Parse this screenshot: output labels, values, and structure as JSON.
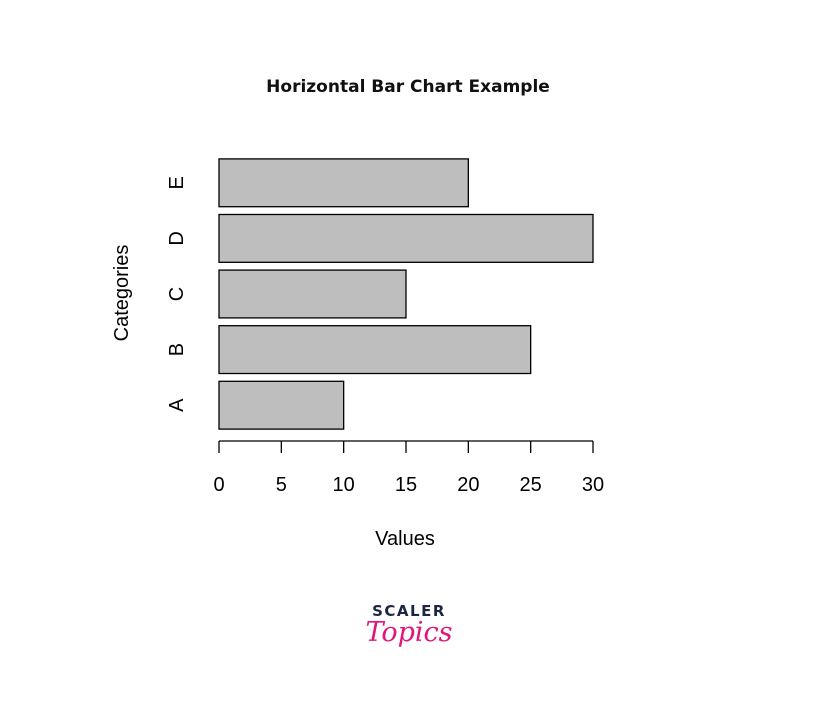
{
  "chart_data": {
    "type": "bar",
    "orientation": "horizontal",
    "title": "Horizontal Bar Chart Example",
    "xlabel": "Values",
    "ylabel": "Categories",
    "categories": [
      "A",
      "B",
      "C",
      "D",
      "E"
    ],
    "values": [
      10,
      25,
      15,
      30,
      20
    ],
    "xlim": [
      0,
      30
    ],
    "x_ticks": [
      "0",
      "5",
      "10",
      "15",
      "20",
      "25",
      "30"
    ],
    "bar_color": "#bebebe",
    "bar_edge_color": "#000000",
    "grid": false
  },
  "branding": {
    "logo_line1": "SCALER",
    "logo_line2": "Topics",
    "logo_color_dark": "#1c2541",
    "logo_color_accent": "#e0157a"
  }
}
